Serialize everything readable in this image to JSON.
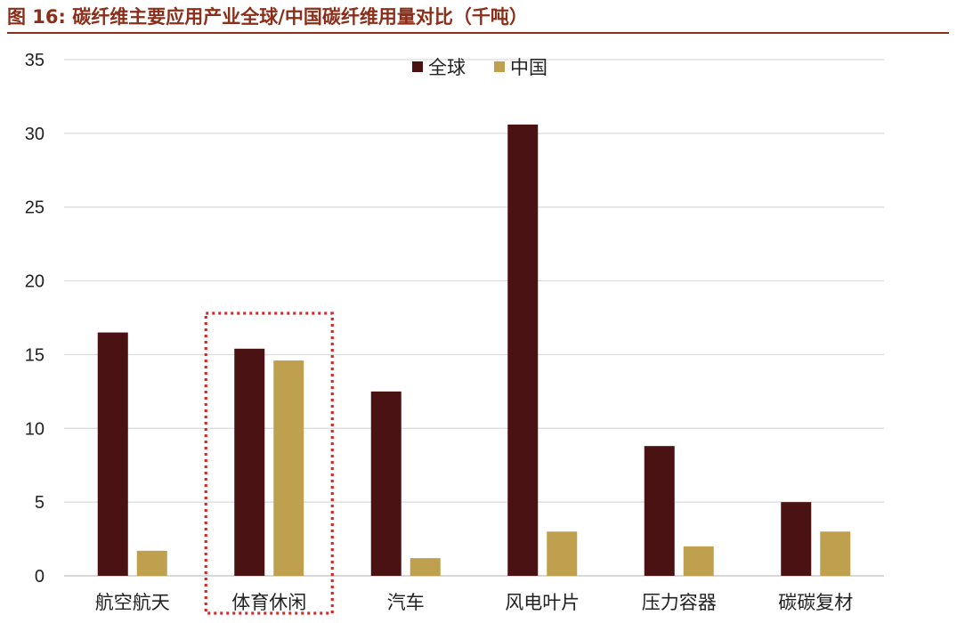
{
  "figure": {
    "title": "图 16:  碳纤维主要应用产业全球/中国碳纤维用量对比（千吨）"
  },
  "chart_data": {
    "type": "bar",
    "title": "",
    "xlabel": "",
    "ylabel": "",
    "categories": [
      "航空航天",
      "体育休闲",
      "汽车",
      "风电叶片",
      "压力容器",
      "碳碳复材"
    ],
    "series": [
      {
        "name": "全球",
        "color": "#4A1212",
        "values": [
          16.5,
          15.4,
          12.5,
          30.6,
          8.8,
          5.0
        ]
      },
      {
        "name": "中国",
        "color": "#BFA04E",
        "values": [
          1.7,
          14.6,
          1.2,
          3.0,
          2.0,
          3.0
        ]
      }
    ],
    "ylim": [
      0,
      35
    ],
    "yticks": [
      0,
      5,
      10,
      15,
      20,
      25,
      30,
      35
    ],
    "grid": true,
    "legend_position": "top-center",
    "highlight": {
      "category": "体育休闲",
      "style": "red dotted box",
      "color": "#D42A2A"
    }
  }
}
